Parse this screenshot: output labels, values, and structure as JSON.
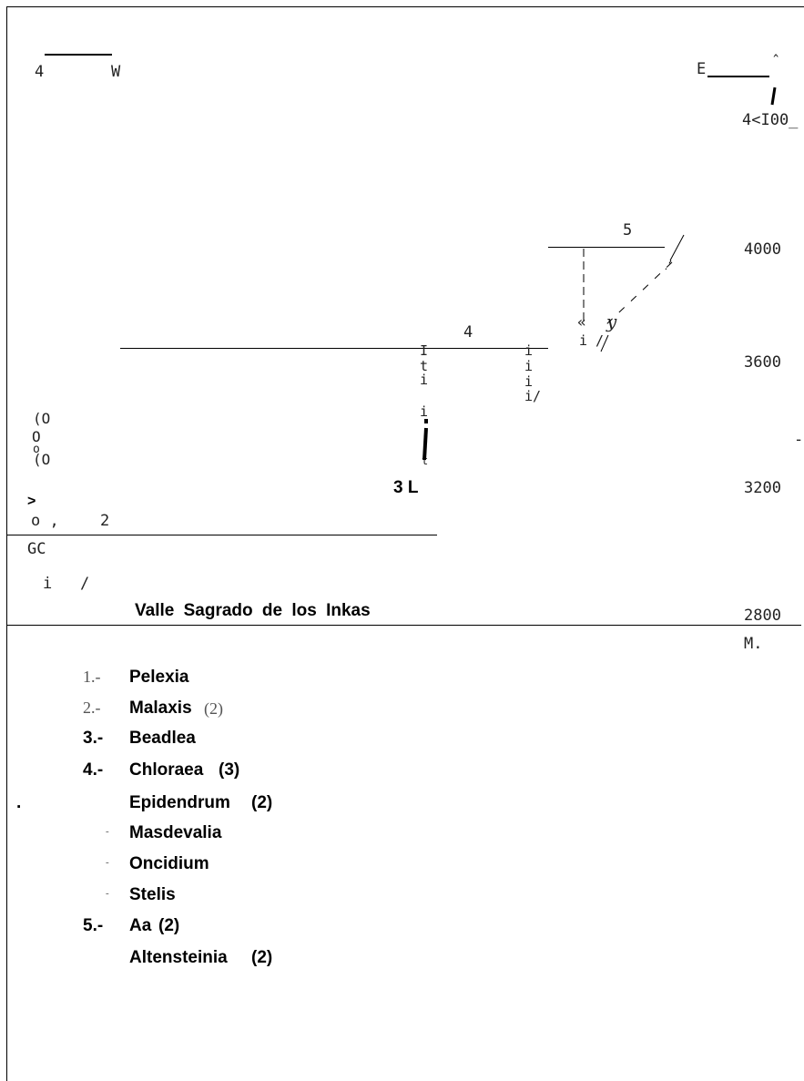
{
  "diagram": {
    "west_label": "W",
    "west_number": "4",
    "east_label": "E",
    "east_caret": "ˆ",
    "east_elevation": "4<I00_",
    "elevations": [
      "4000",
      "3600",
      "3200",
      "2800"
    ],
    "elevation_unit": "M.",
    "zone_numbers": {
      "z2": "2",
      "z3": "3 L",
      "z4": "4",
      "z5": "5"
    },
    "valley_label": "Valle Sagrado de los Inkas",
    "noise": {
      "left_a": "(O",
      "left_b": "O",
      "left_c": "o",
      "left_d": "(O",
      "gt": ">",
      "o_comma": "o ,",
      "gc": "GC",
      "i_slash": "i   /",
      "stem3": [
        "I",
        "t",
        "i",
        "i",
        "t"
      ],
      "stem4": [
        "i",
        "i",
        "i",
        "i/"
      ],
      "stem5_i": "i /",
      "stem5_arrow": "«",
      "stem5_y": "y",
      "dash_right": "-",
      "dot_left": "."
    }
  },
  "legend": [
    {
      "num": "1.-",
      "name": "Pelexia",
      "count": ""
    },
    {
      "num": "2.-",
      "name": "Malaxis",
      "count": "(2)"
    },
    {
      "num": "3.-",
      "name": "Beadlea",
      "count": ""
    },
    {
      "num": "4.-",
      "name": "Chloraea",
      "count": "(3)"
    },
    {
      "num": "",
      "name": "Epidendrum",
      "count": "(2)"
    },
    {
      "num": "-",
      "name": "Masdevalia",
      "count": ""
    },
    {
      "num": "-",
      "name": "Oncidium",
      "count": ""
    },
    {
      "num": "-",
      "name": "Stelis",
      "count": ""
    },
    {
      "num": "5.-",
      "name": "Aa",
      "count": "(2)"
    },
    {
      "num": "",
      "name": "Altensteinia",
      "count": "(2)"
    }
  ]
}
